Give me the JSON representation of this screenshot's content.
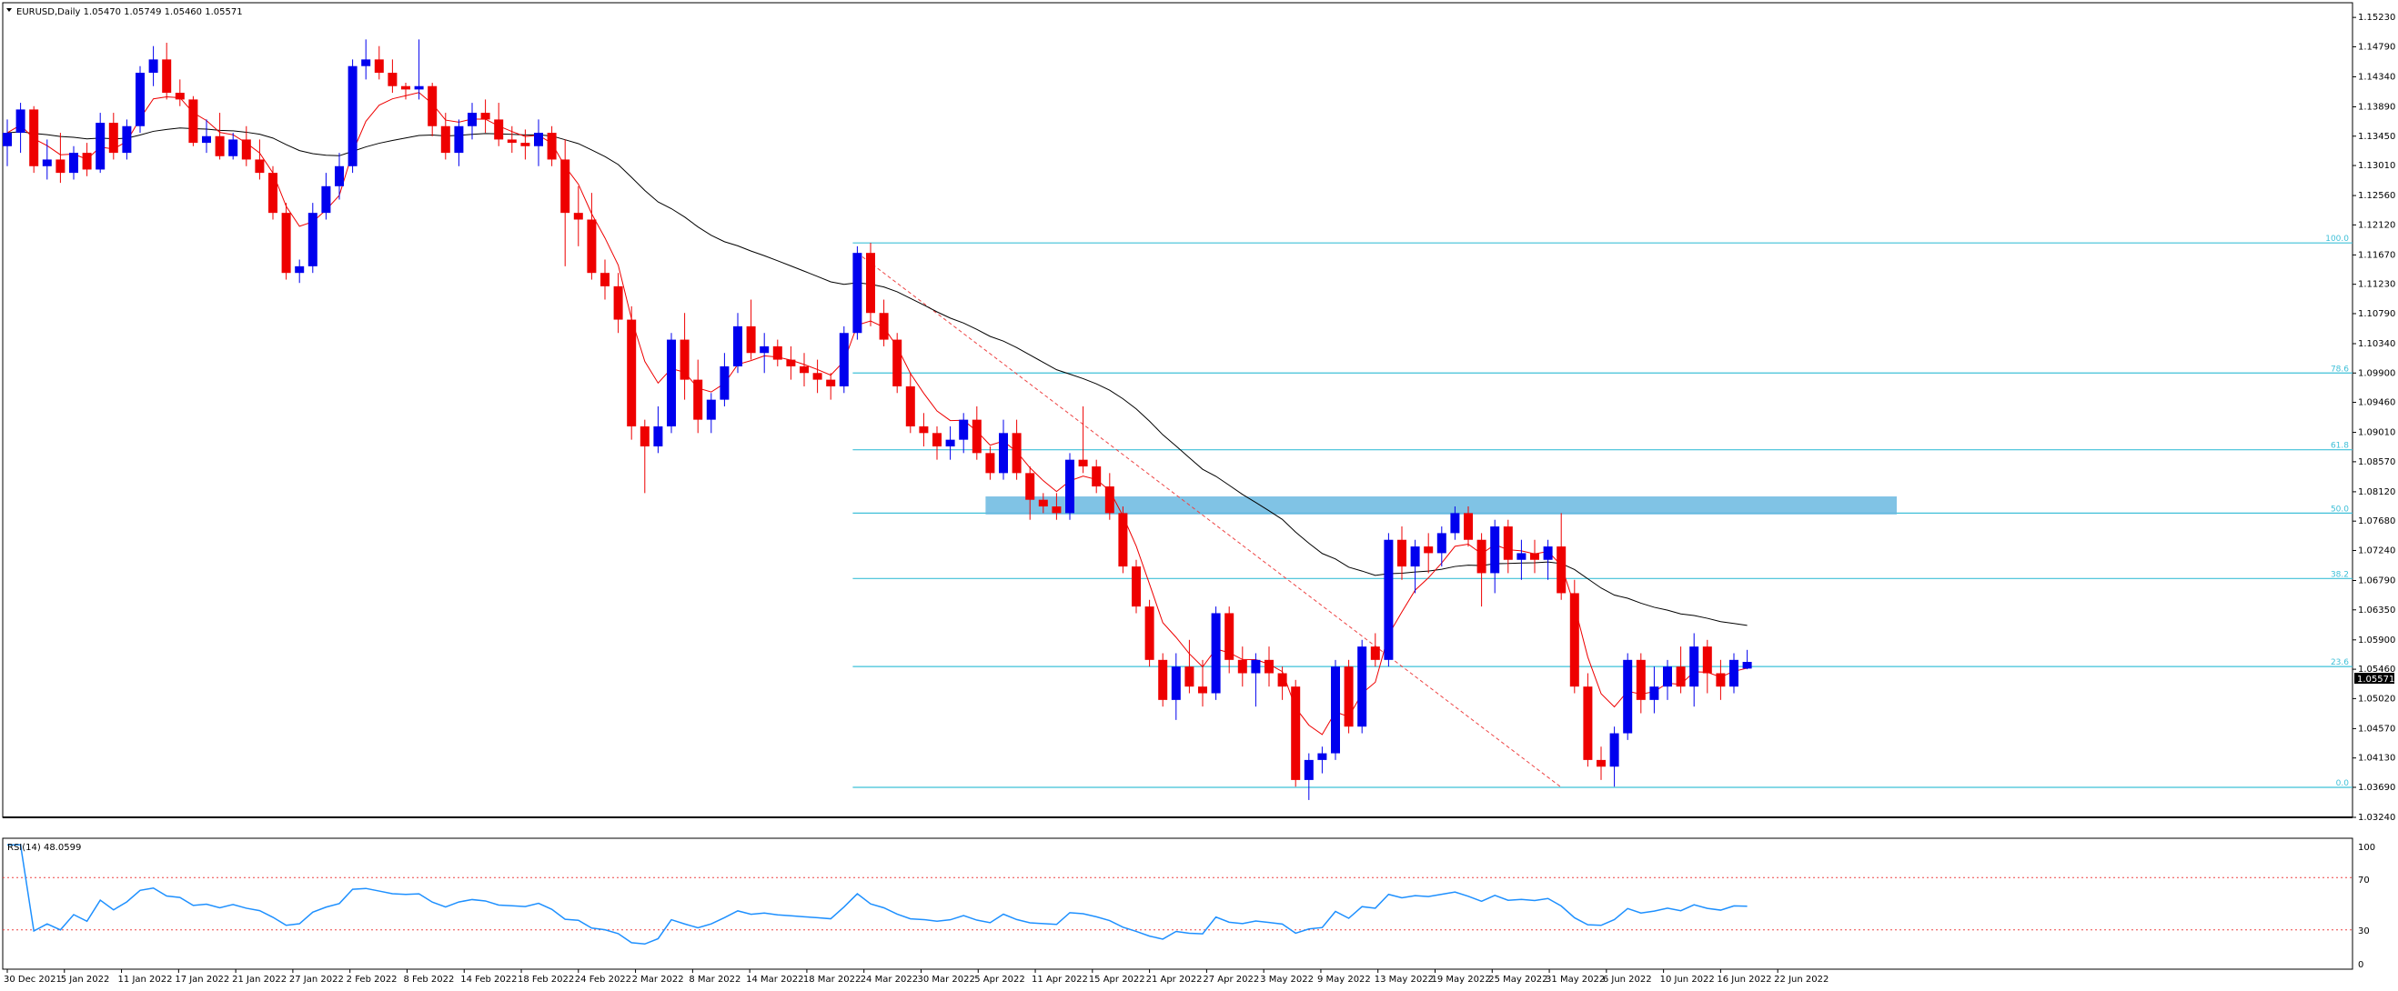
{
  "header": {
    "symbol_info": "EURUSD,Daily  1.05470 1.05749 1.05460 1.05571"
  },
  "rsi_panel": {
    "label": "RSI(14) 48.0599",
    "levels": [
      "100",
      "70",
      "30",
      "0"
    ]
  },
  "price_tag": "1.05571",
  "fib_labels": [
    "100.0",
    "78.6",
    "61.8",
    "50.0",
    "38.2",
    "23.6",
    "0.0"
  ],
  "colors": {
    "bull": "#0000ee",
    "bear": "#ee0000",
    "fast_ma": "#ee0000",
    "slow_ma": "#000000",
    "fib": "#3fc0d8",
    "zone": "#6ab8e0",
    "rsi": "#1e90ff"
  },
  "chart_data": [
    {
      "type": "candlestick",
      "title": "EURUSD,Daily",
      "ohlc_last": {
        "open": 1.0547,
        "high": 1.05749,
        "low": 1.0546,
        "close": 1.05571
      },
      "y_ticks": [
        "1.15230",
        "1.14790",
        "1.14340",
        "1.13890",
        "1.13450",
        "1.13010",
        "1.12560",
        "1.12120",
        "1.11670",
        "1.11230",
        "1.10790",
        "1.10340",
        "1.09900",
        "1.09460",
        "1.09010",
        "1.08570",
        "1.08120",
        "1.07680",
        "1.07240",
        "1.06790",
        "1.06350",
        "1.05900",
        "1.05460",
        "1.05020",
        "1.04570",
        "1.04130",
        "1.03690",
        "1.03240"
      ],
      "x_ticks": [
        "30 Dec 2021",
        "5 Jan 2022",
        "11 Jan 2022",
        "17 Jan 2022",
        "21 Jan 2022",
        "27 Jan 2022",
        "2 Feb 2022",
        "8 Feb 2022",
        "14 Feb 2022",
        "18 Feb 2022",
        "24 Feb 2022",
        "2 Mar 2022",
        "8 Mar 2022",
        "14 Mar 2022",
        "18 Mar 2022",
        "24 Mar 2022",
        "30 Mar 2022",
        "5 Apr 2022",
        "11 Apr 2022",
        "15 Apr 2022",
        "21 Apr 2022",
        "27 Apr 2022",
        "3 May 2022",
        "9 May 2022",
        "13 May 2022",
        "19 May 2022",
        "25 May 2022",
        "31 May 2022",
        "6 Jun 2022",
        "10 Jun 2022",
        "16 Jun 2022",
        "22 Jun 2022"
      ],
      "ylim": [
        1.0324,
        1.1545
      ],
      "candles": [
        [
          1.133,
          1.137,
          1.13,
          1.135
        ],
        [
          1.135,
          1.1395,
          1.132,
          1.1385
        ],
        [
          1.1385,
          1.139,
          1.129,
          1.13
        ],
        [
          1.13,
          1.134,
          1.128,
          1.131
        ],
        [
          1.131,
          1.135,
          1.1275,
          1.129
        ],
        [
          1.129,
          1.133,
          1.128,
          1.132
        ],
        [
          1.132,
          1.1335,
          1.1285,
          1.1295
        ],
        [
          1.1295,
          1.138,
          1.129,
          1.1365
        ],
        [
          1.1365,
          1.138,
          1.131,
          1.132
        ],
        [
          1.132,
          1.137,
          1.131,
          1.136
        ],
        [
          1.136,
          1.145,
          1.135,
          1.144
        ],
        [
          1.144,
          1.148,
          1.142,
          1.146
        ],
        [
          1.146,
          1.1485,
          1.14,
          1.141
        ],
        [
          1.141,
          1.143,
          1.139,
          1.14
        ],
        [
          1.14,
          1.1405,
          1.133,
          1.1335
        ],
        [
          1.1335,
          1.137,
          1.132,
          1.1345
        ],
        [
          1.1345,
          1.138,
          1.131,
          1.1315
        ],
        [
          1.1315,
          1.135,
          1.131,
          1.134
        ],
        [
          1.134,
          1.136,
          1.13,
          1.131
        ],
        [
          1.131,
          1.134,
          1.128,
          1.129
        ],
        [
          1.129,
          1.13,
          1.122,
          1.123
        ],
        [
          1.123,
          1.1245,
          1.113,
          1.114
        ],
        [
          1.114,
          1.116,
          1.1125,
          1.115
        ],
        [
          1.115,
          1.1245,
          1.114,
          1.123
        ],
        [
          1.123,
          1.129,
          1.122,
          1.127
        ],
        [
          1.127,
          1.132,
          1.125,
          1.13
        ],
        [
          1.13,
          1.146,
          1.129,
          1.145
        ],
        [
          1.145,
          1.149,
          1.143,
          1.146
        ],
        [
          1.146,
          1.148,
          1.143,
          1.144
        ],
        [
          1.144,
          1.146,
          1.141,
          1.142
        ],
        [
          1.142,
          1.1425,
          1.14,
          1.1415
        ],
        [
          1.1415,
          1.149,
          1.14,
          1.142
        ],
        [
          1.142,
          1.1425,
          1.1345,
          1.136
        ],
        [
          1.136,
          1.138,
          1.131,
          1.132
        ],
        [
          1.132,
          1.137,
          1.13,
          1.136
        ],
        [
          1.136,
          1.1395,
          1.134,
          1.138
        ],
        [
          1.138,
          1.14,
          1.135,
          1.137
        ],
        [
          1.137,
          1.1395,
          1.133,
          1.134
        ],
        [
          1.134,
          1.136,
          1.132,
          1.1335
        ],
        [
          1.1335,
          1.1355,
          1.131,
          1.133
        ],
        [
          1.133,
          1.137,
          1.13,
          1.135
        ],
        [
          1.135,
          1.136,
          1.13,
          1.131
        ],
        [
          1.131,
          1.134,
          1.115,
          1.123
        ],
        [
          1.123,
          1.127,
          1.118,
          1.122
        ],
        [
          1.122,
          1.126,
          1.113,
          1.114
        ],
        [
          1.114,
          1.116,
          1.11,
          1.112
        ],
        [
          1.112,
          1.114,
          1.105,
          1.107
        ],
        [
          1.107,
          1.109,
          1.089,
          1.091
        ],
        [
          1.091,
          1.092,
          1.081,
          1.088
        ],
        [
          1.088,
          1.094,
          1.087,
          1.091
        ],
        [
          1.091,
          1.105,
          1.09,
          1.104
        ],
        [
          1.104,
          1.108,
          1.095,
          1.098
        ],
        [
          1.098,
          1.101,
          1.09,
          1.092
        ],
        [
          1.092,
          1.096,
          1.09,
          1.095
        ],
        [
          1.095,
          1.102,
          1.094,
          1.1
        ],
        [
          1.1,
          1.108,
          1.099,
          1.106
        ],
        [
          1.106,
          1.11,
          1.101,
          1.102
        ],
        [
          1.102,
          1.105,
          1.099,
          1.103
        ],
        [
          1.103,
          1.104,
          1.1,
          1.101
        ],
        [
          1.101,
          1.103,
          1.098,
          1.1
        ],
        [
          1.1,
          1.102,
          1.097,
          1.099
        ],
        [
          1.099,
          1.101,
          1.096,
          1.098
        ],
        [
          1.098,
          1.099,
          1.095,
          1.097
        ],
        [
          1.097,
          1.106,
          1.096,
          1.105
        ],
        [
          1.105,
          1.118,
          1.104,
          1.117
        ],
        [
          1.117,
          1.1185,
          1.106,
          1.108
        ],
        [
          1.108,
          1.11,
          1.103,
          1.104
        ],
        [
          1.104,
          1.105,
          1.096,
          1.097
        ],
        [
          1.097,
          1.099,
          1.09,
          1.091
        ],
        [
          1.091,
          1.093,
          1.088,
          1.09
        ],
        [
          1.09,
          1.091,
          1.086,
          1.088
        ],
        [
          1.088,
          1.091,
          1.086,
          1.089
        ],
        [
          1.089,
          1.093,
          1.087,
          1.092
        ],
        [
          1.092,
          1.094,
          1.086,
          1.087
        ],
        [
          1.087,
          1.088,
          1.083,
          1.084
        ],
        [
          1.084,
          1.092,
          1.083,
          1.09
        ],
        [
          1.09,
          1.092,
          1.083,
          1.084
        ],
        [
          1.084,
          1.085,
          1.077,
          1.08
        ],
        [
          1.08,
          1.081,
          1.078,
          1.079
        ],
        [
          1.079,
          1.081,
          1.077,
          1.078
        ],
        [
          1.078,
          1.087,
          1.077,
          1.086
        ],
        [
          1.086,
          1.094,
          1.084,
          1.085
        ],
        [
          1.085,
          1.086,
          1.081,
          1.082
        ],
        [
          1.082,
          1.084,
          1.077,
          1.078
        ],
        [
          1.078,
          1.079,
          1.069,
          1.07
        ],
        [
          1.07,
          1.071,
          1.063,
          1.064
        ],
        [
          1.064,
          1.065,
          1.055,
          1.056
        ],
        [
          1.056,
          1.057,
          1.049,
          1.05
        ],
        [
          1.05,
          1.057,
          1.047,
          1.055
        ],
        [
          1.055,
          1.059,
          1.051,
          1.052
        ],
        [
          1.052,
          1.056,
          1.049,
          1.051
        ],
        [
          1.051,
          1.064,
          1.05,
          1.063
        ],
        [
          1.063,
          1.064,
          1.054,
          1.056
        ],
        [
          1.056,
          1.058,
          1.052,
          1.054
        ],
        [
          1.054,
          1.057,
          1.049,
          1.056
        ],
        [
          1.056,
          1.058,
          1.052,
          1.054
        ],
        [
          1.054,
          1.055,
          1.05,
          1.052
        ],
        [
          1.052,
          1.053,
          1.037,
          1.038
        ],
        [
          1.038,
          1.042,
          1.035,
          1.041
        ],
        [
          1.041,
          1.043,
          1.039,
          1.042
        ],
        [
          1.042,
          1.056,
          1.041,
          1.055
        ],
        [
          1.055,
          1.056,
          1.045,
          1.046
        ],
        [
          1.046,
          1.059,
          1.045,
          1.058
        ],
        [
          1.058,
          1.06,
          1.055,
          1.056
        ],
        [
          1.056,
          1.075,
          1.055,
          1.074
        ],
        [
          1.074,
          1.076,
          1.068,
          1.07
        ],
        [
          1.07,
          1.074,
          1.066,
          1.073
        ],
        [
          1.073,
          1.075,
          1.069,
          1.072
        ],
        [
          1.072,
          1.076,
          1.07,
          1.075
        ],
        [
          1.075,
          1.079,
          1.074,
          1.078
        ],
        [
          1.078,
          1.079,
          1.073,
          1.074
        ],
        [
          1.074,
          1.075,
          1.064,
          1.069
        ],
        [
          1.069,
          1.077,
          1.066,
          1.076
        ],
        [
          1.076,
          1.077,
          1.069,
          1.071
        ],
        [
          1.071,
          1.074,
          1.068,
          1.072
        ],
        [
          1.072,
          1.074,
          1.069,
          1.071
        ],
        [
          1.071,
          1.074,
          1.068,
          1.073
        ],
        [
          1.073,
          1.078,
          1.065,
          1.066
        ],
        [
          1.066,
          1.068,
          1.051,
          1.052
        ],
        [
          1.052,
          1.054,
          1.04,
          1.041
        ],
        [
          1.041,
          1.043,
          1.038,
          1.04
        ],
        [
          1.04,
          1.046,
          1.037,
          1.045
        ],
        [
          1.045,
          1.057,
          1.044,
          1.056
        ],
        [
          1.056,
          1.057,
          1.048,
          1.05
        ],
        [
          1.05,
          1.055,
          1.048,
          1.052
        ],
        [
          1.052,
          1.056,
          1.05,
          1.055
        ],
        [
          1.055,
          1.058,
          1.051,
          1.052
        ],
        [
          1.052,
          1.06,
          1.049,
          1.058
        ],
        [
          1.058,
          1.059,
          1.051,
          1.054
        ],
        [
          1.054,
          1.056,
          1.05,
          1.052
        ],
        [
          1.052,
          1.057,
          1.051,
          1.056
        ],
        [
          1.0547,
          1.0575,
          1.0546,
          1.0557
        ]
      ],
      "fib_levels": [
        {
          "label": "100.0",
          "price": 1.1185
        },
        {
          "label": "78.6",
          "price": 1.099
        },
        {
          "label": "61.8",
          "price": 1.0875
        },
        {
          "label": "50.0",
          "price": 1.078
        },
        {
          "label": "38.2",
          "price": 1.0682
        },
        {
          "label": "23.6",
          "price": 1.055
        },
        {
          "label": "0.0",
          "price": 1.0369
        }
      ],
      "zone": {
        "price_low": 1.0778,
        "price_high": 1.0805
      },
      "trendline": [
        [
          1.117,
          1.0369
        ]
      ],
      "slow_ma_end": 1.06,
      "current_price": 1.05571
    },
    {
      "type": "line",
      "title": "RSI(14) 48.0599",
      "ylim": [
        0,
        100
      ],
      "levels": [
        70,
        30
      ],
      "last_value": 48.0599
    }
  ]
}
